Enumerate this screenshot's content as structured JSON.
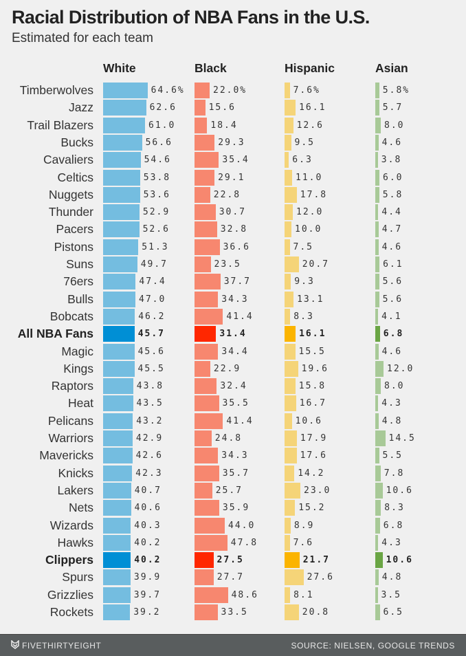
{
  "header": {
    "title": "Racial Distribution of NBA Fans in the U.S.",
    "subtitle": "Estimated for each team"
  },
  "footer": {
    "brand": "FIVETHIRTYEIGHT",
    "brand_icon": "fox-logo-icon",
    "source": "SOURCE: NIELSEN, GOOGLE TRENDS"
  },
  "colors": {
    "white": "#74bde0",
    "white_hl": "#008fd5",
    "black": "#f7876f",
    "black_hl": "#ff2700",
    "hispanic": "#f5d478",
    "hispanic_hl": "#fbb400",
    "asian": "#a8c997",
    "asian_hl": "#6aa544"
  },
  "chart_data": {
    "type": "bar",
    "orientation": "horizontal",
    "title": "Racial Distribution of NBA Fans in the U.S.",
    "subtitle": "Estimated for each team",
    "unit": "%",
    "series_names": [
      "White",
      "Black",
      "Hispanic",
      "Asian"
    ],
    "highlighted": [
      "All NBA Fans",
      "Clippers"
    ],
    "categories": [
      "Timberwolves",
      "Jazz",
      "Trail Blazers",
      "Bucks",
      "Cavaliers",
      "Celtics",
      "Nuggets",
      "Thunder",
      "Pacers",
      "Pistons",
      "Suns",
      "76ers",
      "Bulls",
      "Bobcats",
      "All NBA Fans",
      "Magic",
      "Kings",
      "Raptors",
      "Heat",
      "Pelicans",
      "Warriors",
      "Mavericks",
      "Knicks",
      "Lakers",
      "Nets",
      "Wizards",
      "Hawks",
      "Clippers",
      "Spurs",
      "Grizzlies",
      "Rockets"
    ],
    "series": [
      {
        "name": "White",
        "values": [
          64.6,
          62.6,
          61.0,
          56.6,
          54.6,
          53.8,
          53.6,
          52.9,
          52.6,
          51.3,
          49.7,
          47.4,
          47.0,
          46.2,
          45.7,
          45.6,
          45.5,
          43.8,
          43.5,
          43.2,
          42.9,
          42.6,
          42.3,
          40.7,
          40.6,
          40.3,
          40.2,
          40.2,
          39.9,
          39.7,
          39.2
        ]
      },
      {
        "name": "Black",
        "values": [
          22.0,
          15.6,
          18.4,
          29.3,
          35.4,
          29.1,
          22.8,
          30.7,
          32.8,
          36.6,
          23.5,
          37.7,
          34.3,
          41.4,
          31.4,
          34.4,
          22.9,
          32.4,
          35.5,
          41.4,
          24.8,
          34.3,
          35.7,
          25.7,
          35.9,
          44.0,
          47.8,
          27.5,
          27.7,
          48.6,
          33.5
        ]
      },
      {
        "name": "Hispanic",
        "values": [
          7.6,
          16.1,
          12.6,
          9.5,
          6.3,
          11.0,
          17.8,
          12.0,
          10.0,
          7.5,
          20.7,
          9.3,
          13.1,
          8.3,
          16.1,
          15.5,
          19.6,
          15.8,
          16.7,
          10.6,
          17.9,
          17.6,
          14.2,
          23.0,
          15.2,
          8.9,
          7.6,
          21.7,
          27.6,
          8.1,
          20.8
        ]
      },
      {
        "name": "Asian",
        "values": [
          5.8,
          5.7,
          8.0,
          4.6,
          3.8,
          6.0,
          5.8,
          4.4,
          4.7,
          4.6,
          6.1,
          5.6,
          5.6,
          4.1,
          6.8,
          4.6,
          12.0,
          8.0,
          4.3,
          4.8,
          14.5,
          5.5,
          7.8,
          10.6,
          8.3,
          6.8,
          4.3,
          10.6,
          4.8,
          3.5,
          6.5
        ]
      }
    ]
  }
}
